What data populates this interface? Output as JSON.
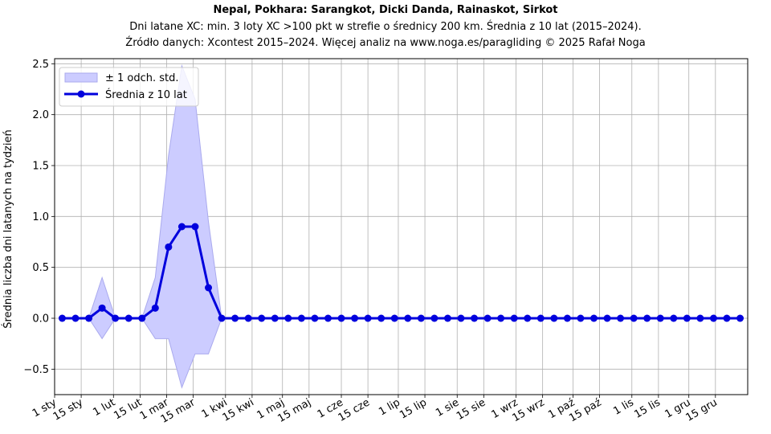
{
  "chart_data": {
    "type": "line",
    "title": "Nepal, Pokhara: Sarangkot, Dicki Danda, Rainaskot, Sirkot",
    "subtitle_lines": [
      "Dni latane XC: min. 3 loty XC >100 pkt w strefie o średnicy 200 km. Średnia z 10 lat (2015–2024).",
      "Źródło danych: Xcontest 2015–2024. Więcej analiz na www.noga.es/paragliding © 2025 Rafał Noga"
    ],
    "ylabel": "Średnia liczba dni latanych na tydzień",
    "xlabel": "",
    "x_unit": "day of year",
    "xlim": [
      1,
      366
    ],
    "ylim": [
      -0.75,
      2.55
    ],
    "y_ticks": [
      -0.5,
      0.0,
      0.5,
      1.0,
      1.5,
      2.0,
      2.5
    ],
    "y_tick_labels": [
      "−0.5",
      "0.0",
      "0.5",
      "1.0",
      "1.5",
      "2.0",
      "2.5"
    ],
    "x_ticks": [
      {
        "label": "1 sty",
        "day": 1
      },
      {
        "label": "15 sty",
        "day": 15
      },
      {
        "label": "1 lut",
        "day": 32
      },
      {
        "label": "15 lut",
        "day": 46
      },
      {
        "label": "1 mar",
        "day": 60
      },
      {
        "label": "15 mar",
        "day": 74
      },
      {
        "label": "1 kwi",
        "day": 91
      },
      {
        "label": "15 kwi",
        "day": 105
      },
      {
        "label": "1 maj",
        "day": 121
      },
      {
        "label": "15 maj",
        "day": 135
      },
      {
        "label": "1 cze",
        "day": 152
      },
      {
        "label": "15 cze",
        "day": 166
      },
      {
        "label": "1 lip",
        "day": 182
      },
      {
        "label": "15 lip",
        "day": 196
      },
      {
        "label": "1 sie",
        "day": 213
      },
      {
        "label": "15 sie",
        "day": 227
      },
      {
        "label": "1 wrz",
        "day": 244
      },
      {
        "label": "15 wrz",
        "day": 258
      },
      {
        "label": "1 paź",
        "day": 274
      },
      {
        "label": "15 paź",
        "day": 288
      },
      {
        "label": "1 lis",
        "day": 305
      },
      {
        "label": "15 lis",
        "day": 319
      },
      {
        "label": "1 gru",
        "day": 335
      },
      {
        "label": "15 gru",
        "day": 349
      }
    ],
    "grid": true,
    "legend_position": "top-left",
    "legend": {
      "band_label": "± 1 odch. std.",
      "line_label": "Średnia z 10 lat"
    },
    "colors": {
      "line": "#0000dd",
      "band_fill": "#ccccff",
      "band_edge": "#aaaaee",
      "grid": "#b0b0b0"
    },
    "series": [
      {
        "x": [
          5,
          12,
          19,
          26,
          33,
          40,
          47,
          54,
          61,
          68,
          75,
          82,
          89,
          96,
          103,
          110,
          117,
          124,
          131,
          138,
          145,
          152,
          159,
          166,
          173,
          180,
          187,
          194,
          201,
          208,
          215,
          222,
          229,
          236,
          243,
          250,
          257,
          264,
          271,
          278,
          285,
          292,
          299,
          306,
          313,
          320,
          327,
          334,
          341,
          348,
          355,
          362
        ],
        "values": [
          0,
          0,
          0,
          0.1,
          0,
          0,
          0,
          0.1,
          0.7,
          0.9,
          0.9,
          0.3,
          0,
          0,
          0,
          0,
          0,
          0,
          0,
          0,
          0,
          0,
          0,
          0,
          0,
          0,
          0,
          0,
          0,
          0,
          0,
          0,
          0,
          0,
          0,
          0,
          0,
          0,
          0,
          0,
          0,
          0,
          0,
          0,
          0,
          0,
          0,
          0,
          0,
          0,
          0,
          0
        ],
        "std": [
          0,
          0,
          0,
          0.3,
          0,
          0,
          0,
          0.3,
          0.9,
          1.58,
          1.25,
          0.65,
          0,
          0,
          0,
          0,
          0,
          0,
          0,
          0,
          0,
          0,
          0,
          0,
          0,
          0,
          0,
          0,
          0,
          0,
          0,
          0,
          0,
          0,
          0,
          0,
          0,
          0,
          0,
          0,
          0,
          0,
          0,
          0,
          0,
          0,
          0,
          0,
          0,
          0,
          0,
          0
        ]
      }
    ]
  }
}
